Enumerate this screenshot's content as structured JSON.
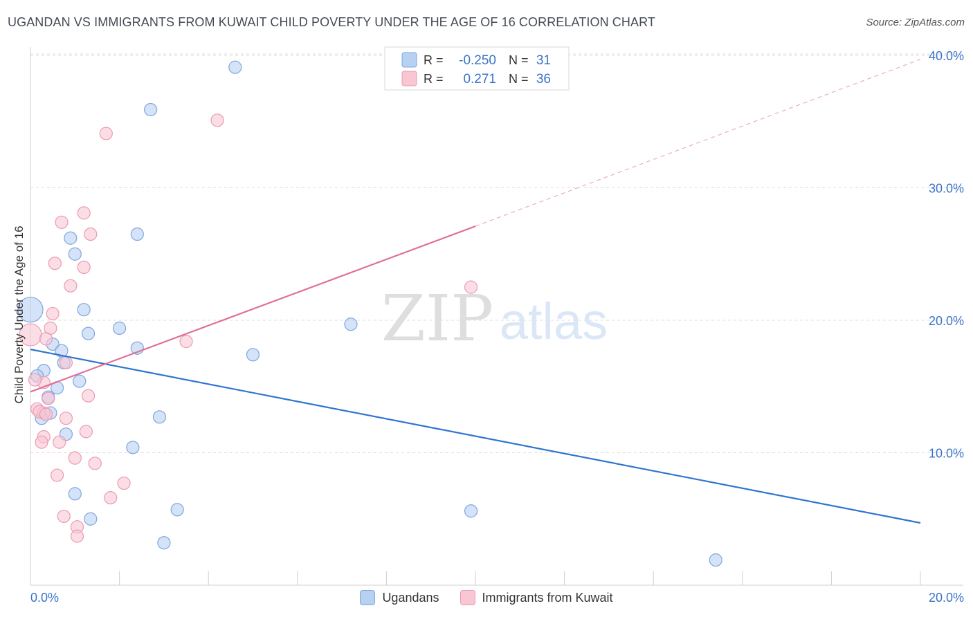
{
  "title": "UGANDAN VS IMMIGRANTS FROM KUWAIT CHILD POVERTY UNDER THE AGE OF 16 CORRELATION CHART",
  "source": "Source: ZipAtlas.com",
  "watermark": {
    "zip": "ZIP",
    "atlas": "atlas"
  },
  "colors": {
    "blue_fill": "#b7d1f3",
    "blue_stroke": "#7ea6de",
    "blue_line": "#2f74d0",
    "pink_fill": "#f9c6d4",
    "pink_stroke": "#ec9ab2",
    "pink_line": "#e0709a",
    "axis_label": "#3b73c9",
    "grid": "#dcdcdc"
  },
  "legend": {
    "rows": [
      {
        "r_label": "R =",
        "r_value": "-0.250",
        "n_label": "N =",
        "n_value": "31"
      },
      {
        "r_label": "R =",
        "r_value": "0.271",
        "n_label": "N =",
        "n_value": "36"
      }
    ]
  },
  "bottom_legend": {
    "series1": "Ugandans",
    "series2": "Immigrants from Kuwait"
  },
  "chart_data": {
    "type": "scatter",
    "title": "UGANDAN VS IMMIGRANTS FROM KUWAIT CHILD POVERTY UNDER THE AGE OF 16 CORRELATION CHART",
    "xlabel": "",
    "ylabel": "Child Poverty Under the Age of 16",
    "xlim": [
      0,
      20
    ],
    "ylim": [
      0,
      40
    ],
    "x_tick_labels": [
      "0.0%",
      "20.0%"
    ],
    "y_ticks": [
      10,
      20,
      30,
      40
    ],
    "y_tick_labels": [
      "10.0%",
      "20.0%",
      "30.0%",
      "40.0%"
    ],
    "grid": true,
    "series": [
      {
        "name": "Ugandans",
        "R": -0.25,
        "N": 31,
        "trend": {
          "x0": 0,
          "y0": 17.8,
          "x1": 20,
          "y1": 4.7
        },
        "points": [
          [
            4.6,
            39.1
          ],
          [
            2.7,
            35.9
          ],
          [
            2.4,
            26.5
          ],
          [
            0.9,
            26.2
          ],
          [
            1.0,
            25.0
          ],
          [
            0.0,
            20.8
          ],
          [
            1.2,
            20.8
          ],
          [
            2.0,
            19.4
          ],
          [
            1.3,
            19.0
          ],
          [
            7.2,
            19.7
          ],
          [
            0.5,
            18.2
          ],
          [
            0.7,
            17.7
          ],
          [
            2.4,
            17.9
          ],
          [
            5.0,
            17.4
          ],
          [
            0.75,
            16.8
          ],
          [
            0.3,
            16.2
          ],
          [
            0.15,
            15.8
          ],
          [
            1.1,
            15.4
          ],
          [
            0.6,
            14.9
          ],
          [
            0.4,
            14.2
          ],
          [
            0.45,
            13.0
          ],
          [
            0.25,
            12.6
          ],
          [
            2.9,
            12.7
          ],
          [
            0.8,
            11.4
          ],
          [
            2.3,
            10.4
          ],
          [
            1.0,
            6.9
          ],
          [
            3.3,
            5.7
          ],
          [
            1.35,
            5.0
          ],
          [
            9.9,
            5.6
          ],
          [
            3.0,
            3.2
          ],
          [
            15.4,
            1.9
          ]
        ],
        "sizes": [
          9,
          9,
          9,
          9,
          9,
          18,
          9,
          9,
          9,
          9,
          9,
          9,
          9,
          9,
          9,
          9,
          9,
          9,
          9,
          9,
          9,
          9,
          9,
          9,
          9,
          9,
          9,
          9,
          9,
          9,
          9
        ]
      },
      {
        "name": "Immigrants from Kuwait",
        "R": 0.271,
        "N": 36,
        "trend": {
          "x0": 0,
          "y0": 14.6,
          "x1": 10,
          "y1": 27.1,
          "dashed_to": {
            "x": 20,
            "y": 39.7
          }
        },
        "points": [
          [
            4.2,
            35.1
          ],
          [
            1.7,
            34.1
          ],
          [
            1.2,
            28.1
          ],
          [
            0.7,
            27.4
          ],
          [
            1.35,
            26.5
          ],
          [
            0.55,
            24.3
          ],
          [
            1.2,
            24.0
          ],
          [
            0.9,
            22.6
          ],
          [
            9.9,
            22.5
          ],
          [
            0.5,
            20.5
          ],
          [
            0.45,
            19.4
          ],
          [
            0.0,
            18.9
          ],
          [
            0.35,
            18.6
          ],
          [
            3.5,
            18.4
          ],
          [
            0.8,
            16.8
          ],
          [
            0.3,
            15.3
          ],
          [
            0.1,
            15.5
          ],
          [
            1.3,
            14.3
          ],
          [
            0.4,
            14.1
          ],
          [
            0.15,
            13.3
          ],
          [
            0.3,
            13.0
          ],
          [
            0.2,
            13.1
          ],
          [
            0.8,
            12.6
          ],
          [
            1.25,
            11.6
          ],
          [
            0.3,
            11.2
          ],
          [
            0.25,
            10.8
          ],
          [
            0.65,
            10.8
          ],
          [
            1.0,
            9.6
          ],
          [
            1.45,
            9.2
          ],
          [
            0.6,
            8.3
          ],
          [
            2.1,
            7.7
          ],
          [
            1.8,
            6.6
          ],
          [
            0.75,
            5.2
          ],
          [
            1.05,
            4.4
          ],
          [
            1.05,
            3.7
          ],
          [
            0.35,
            12.9
          ]
        ],
        "sizes": [
          9,
          9,
          9,
          9,
          9,
          9,
          9,
          9,
          9,
          9,
          9,
          16,
          9,
          9,
          9,
          9,
          9,
          9,
          9,
          9,
          9,
          9,
          9,
          9,
          9,
          9,
          9,
          9,
          9,
          9,
          9,
          9,
          9,
          9,
          9,
          9
        ]
      }
    ]
  }
}
